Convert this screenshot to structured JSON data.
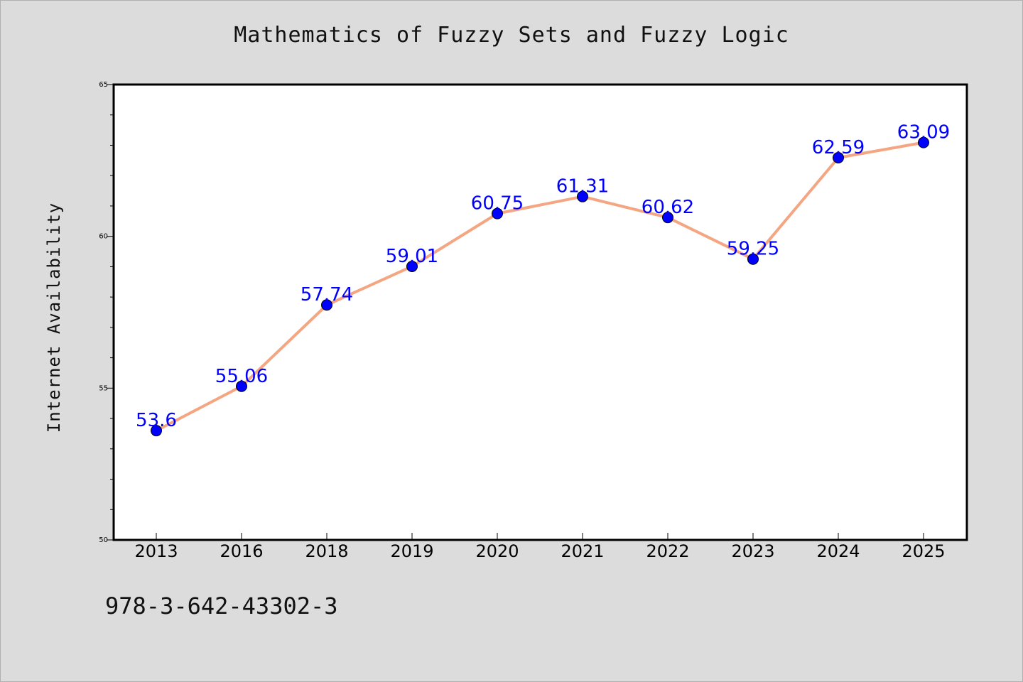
{
  "chart_data": {
    "type": "line",
    "title": "Mathematics of Fuzzy Sets and Fuzzy Logic",
    "xlabel": "",
    "ylabel": "Internet Availability",
    "categories": [
      "2013",
      "2016",
      "2018",
      "2019",
      "2020",
      "2021",
      "2022",
      "2023",
      "2024",
      "2025"
    ],
    "values": [
      53.6,
      55.06,
      57.74,
      59.01,
      60.75,
      61.31,
      60.62,
      59.25,
      62.59,
      63.09
    ],
    "value_labels": [
      "53.6",
      "55.06",
      "57.74",
      "59.01",
      "60.75",
      "61.31",
      "60.62",
      "59.25",
      "62.59",
      "63.09"
    ],
    "ylim": [
      50,
      65
    ],
    "y_ticks": [
      "50",
      "55",
      "60",
      "65"
    ],
    "grid": false,
    "legend": "none",
    "colors": {
      "line": "#f4a582",
      "marker": "#0000ff",
      "label": "#0000ff"
    }
  },
  "footer": {
    "isbn": "978-3-642-43302-3"
  }
}
